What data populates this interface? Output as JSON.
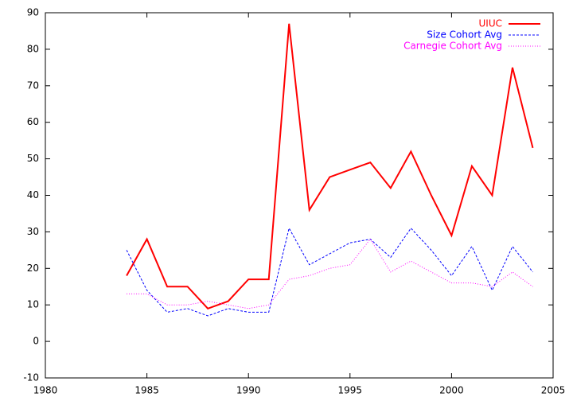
{
  "chart_data": {
    "type": "line",
    "x": [
      1984,
      1985,
      1986,
      1987,
      1988,
      1989,
      1990,
      1991,
      1992,
      1993,
      1994,
      1995,
      1996,
      1997,
      1998,
      1999,
      2000,
      2001,
      2002,
      2003,
      2004
    ],
    "series": [
      {
        "name": "UIUC",
        "color": "#ff0000",
        "dash": "solid",
        "values": [
          18,
          28,
          15,
          15,
          9,
          11,
          17,
          17,
          87,
          36,
          45,
          47,
          49,
          42,
          52,
          40,
          29,
          48,
          40,
          75,
          53
        ]
      },
      {
        "name": "Size Cohort Avg",
        "color": "#0000ff",
        "dash": "dashed",
        "values": [
          25,
          14,
          8,
          9,
          7,
          9,
          8,
          8,
          31,
          21,
          24,
          27,
          28,
          23,
          31,
          25,
          18,
          26,
          14,
          26,
          19
        ]
      },
      {
        "name": "Carnegie Cohort Avg",
        "color": "#ff00ff",
        "dash": "dotted",
        "values": [
          13,
          13,
          10,
          10,
          11,
          10,
          9,
          10,
          17,
          18,
          20,
          21,
          28,
          19,
          22,
          19,
          16,
          16,
          15,
          19,
          15
        ]
      }
    ],
    "xlim": [
      1980,
      2005
    ],
    "xticks": [
      1980,
      1985,
      1990,
      1995,
      2000,
      2005
    ],
    "ylim": [
      -10,
      90
    ],
    "yticks": [
      -10,
      0,
      10,
      20,
      30,
      40,
      50,
      60,
      70,
      80,
      90
    ],
    "legend": "top-right"
  }
}
